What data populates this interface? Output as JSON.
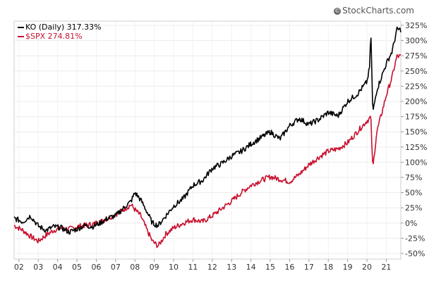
{
  "brand": {
    "label": "StockCharts.com",
    "icon": "copyright-icon"
  },
  "chart_data": {
    "type": "line",
    "title": "",
    "xlabel": "",
    "ylabel": "",
    "x_tick_labels": [
      "02",
      "03",
      "04",
      "05",
      "06",
      "07",
      "08",
      "09",
      "10",
      "11",
      "12",
      "13",
      "14",
      "15",
      "16",
      "17",
      "18",
      "19",
      "20",
      "21"
    ],
    "y_tick_labels": [
      "325%",
      "300%",
      "275%",
      "250%",
      "225%",
      "200%",
      "175%",
      "150%",
      "125%",
      "100%",
      "75%",
      "50%",
      "25%",
      "0%",
      "-25%",
      "-50%"
    ],
    "ylim": [
      -50,
      325
    ],
    "xlim": [
      2001.75,
      2021.75
    ],
    "y_axis_side": "right",
    "grid": true,
    "legend_placement": "top-left",
    "series": [
      {
        "name": "KO (Daily) 317.33%",
        "color": "#000000",
        "x": [
          2001.75,
          2002.2,
          2002.6,
          2003.0,
          2003.4,
          2003.8,
          2004.2,
          2004.6,
          2005.0,
          2005.4,
          2005.8,
          2006.2,
          2006.6,
          2007.0,
          2007.4,
          2007.8,
          2008.0,
          2008.3,
          2008.6,
          2008.9,
          2009.2,
          2009.6,
          2010.0,
          2010.5,
          2011.0,
          2011.5,
          2012.0,
          2012.5,
          2013.0,
          2013.5,
          2014.0,
          2014.5,
          2015.0,
          2015.5,
          2016.0,
          2016.5,
          2017.0,
          2017.5,
          2018.0,
          2018.5,
          2019.0,
          2019.5,
          2020.0,
          2020.15,
          2020.2,
          2020.3,
          2020.5,
          2021.0,
          2021.3,
          2021.55
        ],
        "y": [
          8,
          2,
          12,
          -5,
          -12,
          -6,
          -8,
          -15,
          -10,
          -4,
          -6,
          0,
          8,
          12,
          24,
          36,
          50,
          38,
          20,
          0,
          -4,
          12,
          28,
          40,
          62,
          70,
          90,
          98,
          110,
          118,
          130,
          140,
          150,
          138,
          160,
          172,
          162,
          170,
          182,
          176,
          200,
          212,
          232,
          258,
          322,
          180,
          218,
          262,
          282,
          318
        ]
      },
      {
        "name": "$SPX 274.81%",
        "color": "#c8102e",
        "x": [
          2001.75,
          2002.2,
          2002.6,
          2003.0,
          2003.4,
          2003.8,
          2004.2,
          2004.6,
          2005.0,
          2005.4,
          2005.8,
          2006.2,
          2006.6,
          2007.0,
          2007.4,
          2007.8,
          2008.0,
          2008.3,
          2008.6,
          2008.9,
          2009.2,
          2009.6,
          2010.0,
          2010.5,
          2011.0,
          2011.5,
          2012.0,
          2012.5,
          2013.0,
          2013.5,
          2014.0,
          2014.5,
          2015.0,
          2015.5,
          2016.0,
          2016.5,
          2017.0,
          2017.5,
          2018.0,
          2018.5,
          2019.0,
          2019.5,
          2020.0,
          2020.15,
          2020.2,
          2020.3,
          2020.5,
          2021.0,
          2021.3,
          2021.55
        ],
        "y": [
          -4,
          -12,
          -22,
          -30,
          -20,
          -12,
          -8,
          -10,
          -6,
          -4,
          -2,
          2,
          8,
          14,
          22,
          30,
          22,
          12,
          -10,
          -30,
          -38,
          -18,
          -8,
          0,
          6,
          2,
          12,
          24,
          36,
          50,
          62,
          70,
          76,
          72,
          68,
          80,
          96,
          108,
          118,
          122,
          132,
          150,
          168,
          172,
          176,
          88,
          148,
          210,
          240,
          274
        ]
      }
    ]
  }
}
